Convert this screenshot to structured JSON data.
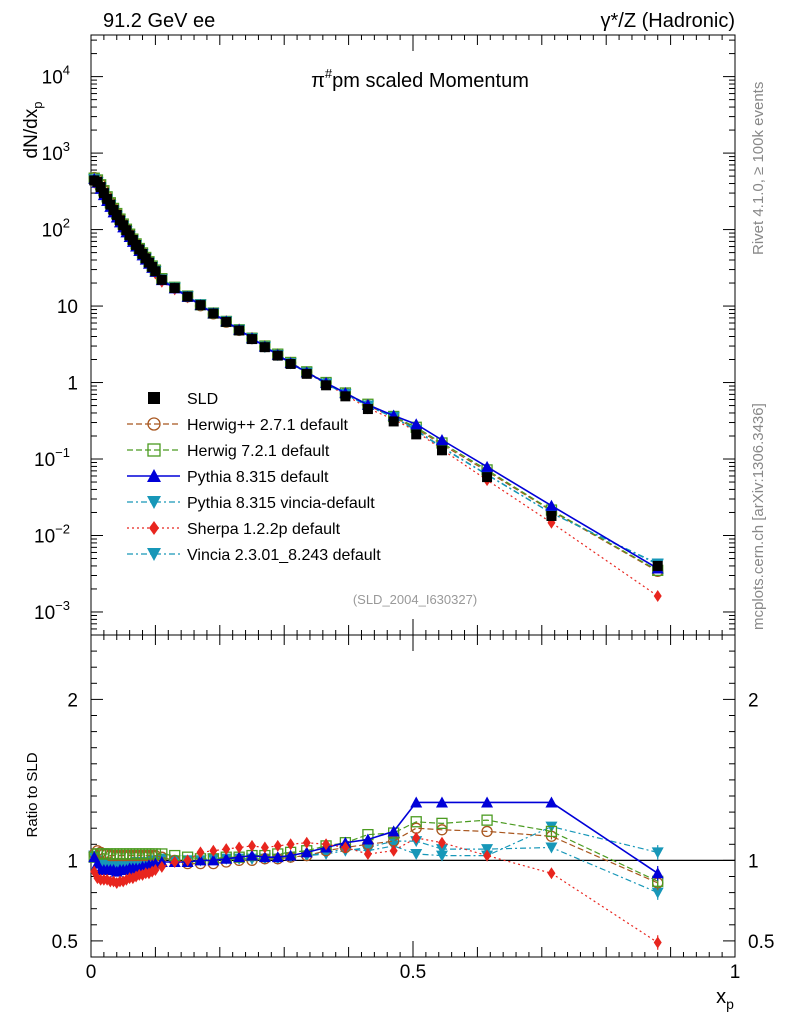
{
  "header": {
    "left": "91.2 GeV ee",
    "right": "γ*/Z (Hadronic)"
  },
  "side": {
    "top": "Rivet 4.1.0, ≥ 100k events",
    "bottom": "mcplots.cern.ch [arXiv:1306.3436]"
  },
  "analysis_tag": "(SLD_2004_I630327)",
  "chart_data": [
    {
      "type": "line",
      "role": "main",
      "title": "π#pm scaled Momentum",
      "title_base": "π",
      "title_sup": "#",
      "title_rest": "pm scaled Momentum",
      "ylabel": "dN/dx",
      "ylabel_sub": "p",
      "yscale": "log",
      "ylim": [
        0.0005,
        35000
      ],
      "xlim": [
        0,
        1
      ],
      "y_ticks": [
        {
          "value": 0.001,
          "base": "10",
          "exp": "−3"
        },
        {
          "value": 0.01,
          "base": "10",
          "exp": "−2"
        },
        {
          "value": 0.1,
          "base": "10",
          "exp": "−1"
        },
        {
          "value": 1,
          "base": "1",
          "exp": ""
        },
        {
          "value": 10,
          "base": "10",
          "exp": ""
        },
        {
          "value": 100,
          "base": "10",
          "exp": "2"
        },
        {
          "value": 1000,
          "base": "10",
          "exp": "3"
        },
        {
          "value": 10000,
          "base": "10",
          "exp": "4"
        }
      ],
      "x": [
        0.005,
        0.01,
        0.015,
        0.02,
        0.025,
        0.03,
        0.035,
        0.04,
        0.045,
        0.05,
        0.055,
        0.06,
        0.065,
        0.07,
        0.075,
        0.08,
        0.085,
        0.09,
        0.095,
        0.1,
        0.11,
        0.13,
        0.15,
        0.17,
        0.19,
        0.21,
        0.23,
        0.25,
        0.27,
        0.29,
        0.31,
        0.335,
        0.365,
        0.395,
        0.43,
        0.47,
        0.505,
        0.545,
        0.615,
        0.715,
        0.88
      ],
      "series": [
        {
          "name": "SLD",
          "marker": "square-filled",
          "color": "#000000",
          "dash": "none",
          "values": [
            440,
            420,
            360,
            300,
            252,
            212,
            180,
            155,
            132,
            114,
            98,
            84,
            73,
            63,
            55,
            48,
            42,
            37,
            32.5,
            28.5,
            22,
            17.2,
            13.3,
            10.3,
            8.0,
            6.2,
            4.8,
            3.7,
            2.9,
            2.25,
            1.75,
            1.3,
            0.92,
            0.66,
            0.45,
            0.31,
            0.21,
            0.13,
            0.058,
            0.018,
            0.004
          ]
        },
        {
          "name": "Herwig++ 2.7.1 default",
          "marker": "circle-open",
          "color": "#a8561e",
          "dash": "6,3",
          "values": [
            480,
            450,
            390,
            325,
            270,
            226,
            190,
            163,
            138,
            118,
            101,
            87,
            75,
            65,
            56.5,
            49.5,
            43,
            37.8,
            33.2,
            29.2,
            22.5,
            17.3,
            13.2,
            10.1,
            7.9,
            6.15,
            4.8,
            3.75,
            2.95,
            2.3,
            1.8,
            1.35,
            0.98,
            0.72,
            0.5,
            0.35,
            0.25,
            0.155,
            0.069,
            0.021,
            0.0034
          ]
        },
        {
          "name": "Herwig 7.2.1 default",
          "marker": "square-open",
          "color": "#4b9b21",
          "dash": "6,3",
          "values": [
            470,
            445,
            385,
            322,
            268,
            224,
            189,
            162,
            137,
            118,
            101,
            87,
            75,
            65,
            56.5,
            49.5,
            43.2,
            38,
            33.4,
            29.5,
            22.8,
            17.6,
            13.5,
            10.4,
            8.1,
            6.3,
            4.9,
            3.8,
            3.0,
            2.35,
            1.83,
            1.38,
            1.0,
            0.73,
            0.52,
            0.36,
            0.26,
            0.162,
            0.072,
            0.0215,
            0.0035
          ]
        },
        {
          "name": "Pythia 8.315 default",
          "marker": "triangle-up",
          "color": "#0000d8",
          "dash": "none",
          "values": [
            460,
            410,
            340,
            282,
            236,
            198,
            168,
            144,
            124,
            107,
            92,
            80,
            69,
            60,
            52.5,
            46,
            40.5,
            35.8,
            31.6,
            28,
            21.8,
            17,
            13.2,
            10.3,
            8.0,
            6.3,
            4.9,
            3.8,
            2.95,
            2.3,
            1.8,
            1.36,
            0.99,
            0.73,
            0.51,
            0.37,
            0.285,
            0.177,
            0.079,
            0.0245,
            0.0037
          ]
        },
        {
          "name": "Pythia 8.315 vincia-default",
          "marker": "triangle-down",
          "color": "#1797b8",
          "dash": "6,3,2,3",
          "values": [
            450,
            415,
            350,
            292,
            245,
            206,
            175,
            150,
            128,
            110,
            95,
            82,
            71,
            62,
            54,
            47.2,
            41.5,
            36.6,
            32.3,
            28.6,
            22.2,
            17.3,
            13.4,
            10.4,
            8.1,
            6.25,
            4.85,
            3.75,
            2.92,
            2.28,
            1.78,
            1.34,
            0.96,
            0.7,
            0.49,
            0.35,
            0.235,
            0.14,
            0.062,
            0.0195,
            0.0043
          ]
        },
        {
          "name": "Sherpa 1.2.2p default",
          "marker": "diamond",
          "color": "#e8251e",
          "dash": "2,3",
          "values": [
            410,
            375,
            318,
            265,
            221,
            185,
            156,
            134,
            115,
            99,
            86,
            75,
            65,
            57,
            49.8,
            43.8,
            38.6,
            34.2,
            30.2,
            26.6,
            20.8,
            16.5,
            13.0,
            10.3,
            8.1,
            6.35,
            4.95,
            3.85,
            3.0,
            2.35,
            1.82,
            1.35,
            0.96,
            0.69,
            0.46,
            0.33,
            0.23,
            0.133,
            0.053,
            0.0147,
            0.00162
          ]
        },
        {
          "name": "Vincia 2.3.01_8.243 default",
          "marker": "triangle-down",
          "color": "#1797b8",
          "dash": "6,3,2,3",
          "values": [
            455,
            420,
            355,
            295,
            247,
            208,
            176,
            151,
            129,
            111,
            95.5,
            82.5,
            71.5,
            62.2,
            54.2,
            47.5,
            41.7,
            36.8,
            32.5,
            28.8,
            22.3,
            17.4,
            13.5,
            10.5,
            8.15,
            6.3,
            4.9,
            3.78,
            2.95,
            2.3,
            1.79,
            1.35,
            0.97,
            0.71,
            0.5,
            0.355,
            0.24,
            0.143,
            0.063,
            0.0196,
            0.0042
          ]
        }
      ]
    },
    {
      "type": "line",
      "role": "ratio",
      "ylabel": "Ratio to SLD",
      "xlabel": "x",
      "xlabel_sub": "p",
      "ylim": [
        0.4,
        2.4
      ],
      "xlim": [
        0,
        1
      ],
      "y_ticks": [
        0.5,
        1,
        2
      ],
      "y_tick_labels": [
        "0.5",
        "1",
        "2"
      ],
      "x_ticks": [
        0,
        0.5,
        1
      ],
      "x_tick_labels": [
        "0",
        "0.5",
        "1"
      ],
      "reference_line": 1,
      "x": [
        0.005,
        0.01,
        0.015,
        0.02,
        0.025,
        0.03,
        0.035,
        0.04,
        0.045,
        0.05,
        0.055,
        0.06,
        0.065,
        0.07,
        0.075,
        0.08,
        0.085,
        0.09,
        0.095,
        0.1,
        0.11,
        0.13,
        0.15,
        0.17,
        0.19,
        0.21,
        0.23,
        0.25,
        0.27,
        0.29,
        0.31,
        0.335,
        0.365,
        0.395,
        0.43,
        0.47,
        0.505,
        0.545,
        0.615,
        0.715,
        0.88
      ],
      "series": [
        {
          "name": "Herwig++ 2.7.1 default",
          "values": [
            1.04,
            1.06,
            1.05,
            1.04,
            1.04,
            1.03,
            1.03,
            1.03,
            1.03,
            1.03,
            1.03,
            1.03,
            1.03,
            1.03,
            1.03,
            1.03,
            1.03,
            1.03,
            1.03,
            1.03,
            1.02,
            1.0,
            0.98,
            0.98,
            0.98,
            0.99,
            1.0,
            1.0,
            1.01,
            1.01,
            1.02,
            1.03,
            1.06,
            1.08,
            1.1,
            1.12,
            1.2,
            1.19,
            1.18,
            1.15,
            0.86
          ]
        },
        {
          "name": "Herwig 7.2.1 default",
          "values": [
            1.02,
            1.04,
            1.04,
            1.04,
            1.04,
            1.04,
            1.04,
            1.04,
            1.04,
            1.04,
            1.04,
            1.04,
            1.04,
            1.04,
            1.04,
            1.04,
            1.04,
            1.04,
            1.04,
            1.04,
            1.04,
            1.03,
            1.02,
            1.01,
            1.01,
            1.02,
            1.02,
            1.03,
            1.03,
            1.04,
            1.05,
            1.06,
            1.09,
            1.11,
            1.16,
            1.17,
            1.24,
            1.23,
            1.25,
            1.18,
            0.87
          ]
        },
        {
          "name": "Pythia 8.315 default",
          "values": [
            1.02,
            0.98,
            0.94,
            0.94,
            0.94,
            0.94,
            0.94,
            0.93,
            0.94,
            0.94,
            0.94,
            0.95,
            0.95,
            0.95,
            0.95,
            0.96,
            0.96,
            0.97,
            0.97,
            0.98,
            0.99,
            0.99,
            0.99,
            1.0,
            1.0,
            1.01,
            1.02,
            1.03,
            1.02,
            1.02,
            1.03,
            1.05,
            1.08,
            1.11,
            1.13,
            1.18,
            1.36,
            1.36,
            1.36,
            1.36,
            0.92
          ]
        },
        {
          "name": "Pythia 8.315 vincia-default",
          "values": [
            1.02,
            0.99,
            0.97,
            0.97,
            0.97,
            0.97,
            0.97,
            0.97,
            0.97,
            0.97,
            0.97,
            0.97,
            0.97,
            0.98,
            0.98,
            0.98,
            0.99,
            0.99,
            0.99,
            1.0,
            1.01,
            1.0,
            1.0,
            1.0,
            1.01,
            1.01,
            1.01,
            1.01,
            1.01,
            1.01,
            1.02,
            1.03,
            1.04,
            1.06,
            1.08,
            1.12,
            1.12,
            1.07,
            1.07,
            1.08,
            0.8
          ]
        },
        {
          "name": "Sherpa 1.2.2p default",
          "values": [
            0.93,
            0.89,
            0.88,
            0.88,
            0.88,
            0.87,
            0.87,
            0.86,
            0.87,
            0.87,
            0.88,
            0.89,
            0.89,
            0.9,
            0.91,
            0.91,
            0.92,
            0.92,
            0.93,
            0.94,
            0.96,
            0.99,
            1.0,
            1.05,
            1.06,
            1.07,
            1.08,
            1.09,
            1.08,
            1.09,
            1.1,
            1.11,
            1.1,
            1.08,
            1.04,
            1.06,
            1.14,
            1.11,
            1.03,
            0.92,
            0.49
          ]
        },
        {
          "name": "Vincia 2.3.01_8.243 default",
          "values": [
            1.03,
            1.0,
            0.98,
            0.98,
            0.98,
            0.98,
            0.98,
            0.98,
            0.98,
            0.98,
            0.98,
            0.98,
            0.98,
            0.99,
            0.99,
            0.99,
            0.99,
            0.99,
            1.0,
            1.0,
            1.01,
            1.0,
            1.0,
            1.0,
            1.01,
            1.01,
            1.01,
            1.01,
            1.01,
            1.01,
            1.02,
            1.03,
            1.05,
            1.07,
            1.06,
            1.09,
            1.04,
            1.03,
            1.03,
            1.21,
            1.05
          ]
        }
      ]
    }
  ]
}
